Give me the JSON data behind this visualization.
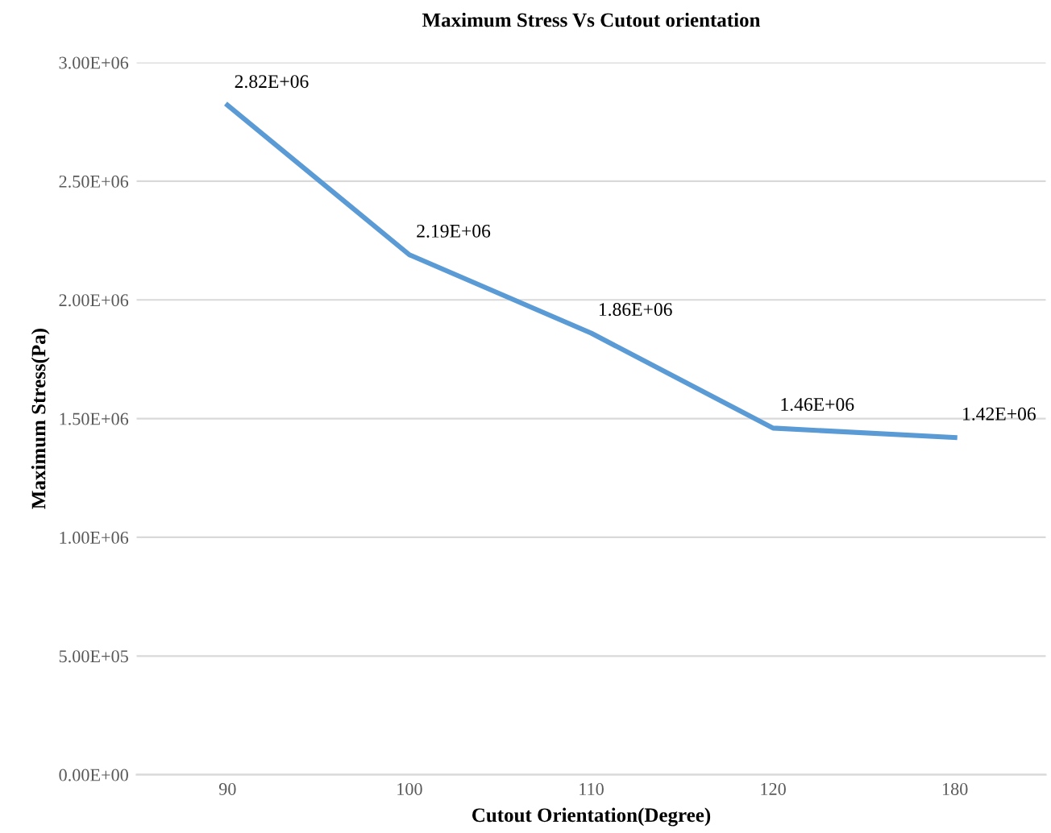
{
  "chart_data": {
    "type": "line",
    "title": "Maximum Stress Vs Cutout orientation",
    "xlabel": "Cutout Orientation(Degree)",
    "ylabel": "Maximum Stress(Pa)",
    "categories": [
      "90",
      "100",
      "110",
      "120",
      "180"
    ],
    "series": [
      {
        "color": "#5b9bd5",
        "values": [
          2820000,
          2190000,
          1860000,
          1460000,
          1420000
        ],
        "value_labels": [
          "2.82E+06",
          "2.19E+06",
          "1.86E+06",
          "1.46E+06",
          "1.42E+06"
        ]
      }
    ],
    "ylim": [
      0,
      3000000
    ],
    "yticks": [
      {
        "value": 0,
        "label": "0.00E+00"
      },
      {
        "value": 500000,
        "label": "5.00E+05"
      },
      {
        "value": 1000000,
        "label": "1.00E+06"
      },
      {
        "value": 1500000,
        "label": "1.50E+06"
      },
      {
        "value": 2000000,
        "label": "2.00E+06"
      },
      {
        "value": 2500000,
        "label": "2.50E+06"
      },
      {
        "value": 3000000,
        "label": "3.00E+06"
      }
    ],
    "grid": "y",
    "legend": false,
    "marker": "none",
    "line_style": "solid"
  }
}
